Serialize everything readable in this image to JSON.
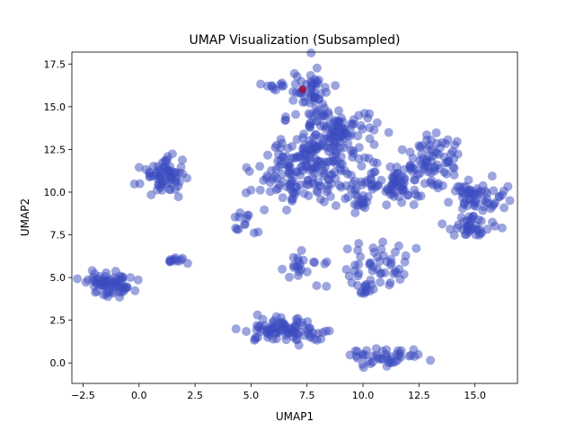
{
  "chart_data": {
    "type": "scatter",
    "title": "UMAP Visualization (Subsampled)",
    "xlabel": "UMAP1",
    "ylabel": "UMAP2",
    "xlim": [
      -3.0,
      16.9
    ],
    "ylim": [
      -1.2,
      18.2
    ],
    "xticks": [
      -2.5,
      0.0,
      2.5,
      5.0,
      7.5,
      10.0,
      12.5,
      15.0
    ],
    "xtick_labels": [
      "−2.5",
      "0.0",
      "2.5",
      "5.0",
      "7.5",
      "10.0",
      "12.5",
      "15.0"
    ],
    "yticks": [
      0.0,
      2.5,
      5.0,
      7.5,
      10.0,
      12.5,
      15.0,
      17.5
    ],
    "ytick_labels": [
      "0.0",
      "2.5",
      "5.0",
      "7.5",
      "10.0",
      "12.5",
      "15.0",
      "17.5"
    ],
    "grid": false,
    "point_color": "#3b4cc0",
    "highlight_color": "#b40426",
    "point_alpha": 0.5,
    "clusters": [
      {
        "center": [
          -1.3,
          4.6
        ],
        "spread": [
          0.55,
          0.35
        ],
        "count": 70
      },
      {
        "center": [
          1.1,
          11.0
        ],
        "spread": [
          0.5,
          0.5
        ],
        "count": 70
      },
      {
        "center": [
          1.7,
          6.0
        ],
        "spread": [
          0.3,
          0.08
        ],
        "count": 12
      },
      {
        "center": [
          5.1,
          8.1
        ],
        "spread": [
          0.45,
          0.35
        ],
        "count": 14
      },
      {
        "center": [
          6.6,
          1.9
        ],
        "spread": [
          0.9,
          0.35
        ],
        "count": 90
      },
      {
        "center": [
          7.3,
          5.5
        ],
        "spread": [
          0.5,
          0.5
        ],
        "count": 22
      },
      {
        "center": [
          10.4,
          5.6
        ],
        "spread": [
          0.8,
          0.7
        ],
        "count": 50
      },
      {
        "center": [
          10.1,
          4.2
        ],
        "spread": [
          0.2,
          0.3
        ],
        "count": 10
      },
      {
        "center": [
          11.0,
          0.3
        ],
        "spread": [
          0.8,
          0.3
        ],
        "count": 45
      },
      {
        "center": [
          7.8,
          11.3
        ],
        "spread": [
          1.2,
          1.0
        ],
        "count": 200
      },
      {
        "center": [
          8.8,
          13.6
        ],
        "spread": [
          0.9,
          0.6
        ],
        "count": 90
      },
      {
        "center": [
          7.6,
          15.8
        ],
        "spread": [
          0.6,
          0.8
        ],
        "count": 60
      },
      {
        "center": [
          6.2,
          16.2
        ],
        "spread": [
          0.4,
          0.1
        ],
        "count": 10
      },
      {
        "center": [
          10.0,
          9.3
        ],
        "spread": [
          0.2,
          0.2
        ],
        "count": 12
      },
      {
        "center": [
          11.7,
          10.5
        ],
        "spread": [
          0.8,
          0.6
        ],
        "count": 80
      },
      {
        "center": [
          13.2,
          12.2
        ],
        "spread": [
          0.6,
          0.6
        ],
        "count": 60
      },
      {
        "center": [
          15.0,
          9.7
        ],
        "spread": [
          0.8,
          0.5
        ],
        "count": 60
      },
      {
        "center": [
          14.8,
          8.0
        ],
        "spread": [
          0.5,
          0.3
        ],
        "count": 40
      }
    ],
    "highlight_points": [
      [
        7.3,
        16.0
      ]
    ]
  }
}
